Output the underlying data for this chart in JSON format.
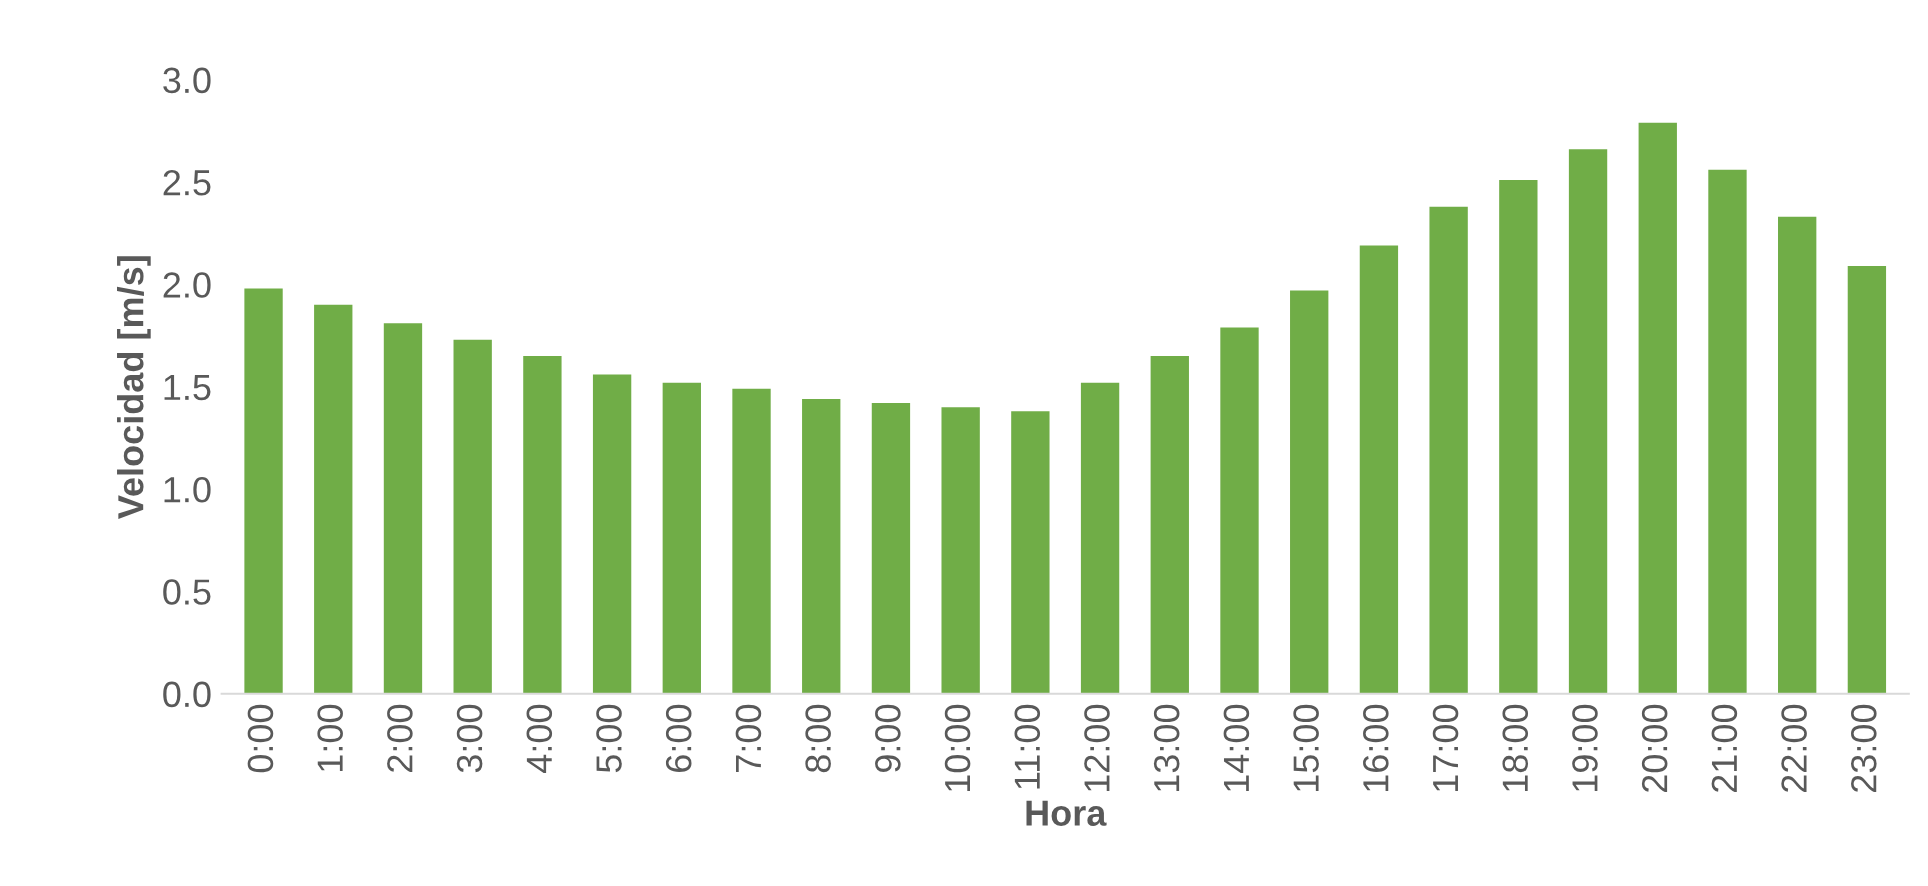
{
  "chart_data": {
    "type": "bar",
    "xlabel": "Hora",
    "ylabel": "Velocidad [m/s]",
    "categories": [
      "0:00",
      "1:00",
      "2:00",
      "3:00",
      "4:00",
      "5:00",
      "6:00",
      "7:00",
      "8:00",
      "9:00",
      "10:00",
      "11:00",
      "12:00",
      "13:00",
      "14:00",
      "15:00",
      "16:00",
      "17:00",
      "18:00",
      "19:00",
      "20:00",
      "21:00",
      "22:00",
      "23:00"
    ],
    "values": [
      1.98,
      1.9,
      1.81,
      1.73,
      1.65,
      1.56,
      1.52,
      1.49,
      1.44,
      1.42,
      1.4,
      1.38,
      1.52,
      1.65,
      1.79,
      1.97,
      2.19,
      2.38,
      2.51,
      2.66,
      2.79,
      2.56,
      2.33,
      2.09
    ],
    "color": "#70ad47",
    "ylim": [
      0,
      3.0
    ],
    "yticks": [
      {
        "value": 0,
        "label": "0.0"
      },
      0.5,
      {
        "value": 1,
        "label": "1.0"
      },
      1.5,
      {
        "value": 2,
        "label": "2.0"
      },
      2.5,
      {
        "value": 3,
        "label": "3.0"
      }
    ],
    "grid": false,
    "legend": false
  }
}
